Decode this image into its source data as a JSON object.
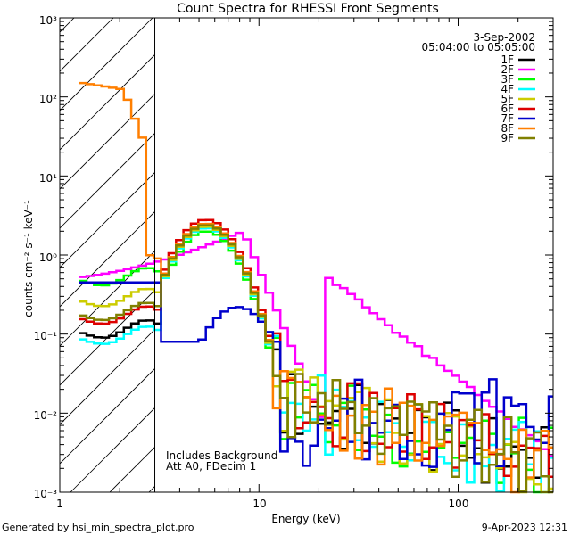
{
  "chart_data": {
    "type": "line",
    "title": "Count Spectra for RHESSI Front Segments",
    "xlabel": "Energy (keV)",
    "ylabel": "counts cm⁻² s⁻¹ keV⁻¹",
    "xscale": "log",
    "yscale": "log",
    "xlim": [
      1,
      300
    ],
    "ylim": [
      0.001,
      1000
    ],
    "x_tick_labels": [
      "1",
      "10",
      "100"
    ],
    "y_tick_labels": [
      "10⁻³",
      "10⁻²",
      "10⁻¹",
      "10⁰",
      "10¹",
      "10²",
      "10³"
    ],
    "date": "3-Sep-2002",
    "time_range": "05:04:00 to 05:05:00",
    "annotations": [
      "Includes Background",
      "Att A0, FDecim 1"
    ],
    "shaded_region_xmax": 3.0,
    "footer_left": "Generated by hsi_min_spectra_plot.pro",
    "footer_right": "9-Apr-2023 12:31",
    "series": [
      {
        "name": "1F",
        "color": "#000000"
      },
      {
        "name": "2F",
        "color": "#ff00ff"
      },
      {
        "name": "3F",
        "color": "#00ff00"
      },
      {
        "name": "4F",
        "color": "#00ffff"
      },
      {
        "name": "5F",
        "color": "#cccc00"
      },
      {
        "name": "6F",
        "color": "#dd0000"
      },
      {
        "name": "7F",
        "color": "#0000cc"
      },
      {
        "name": "8F",
        "color": "#ff7f00"
      },
      {
        "name": "9F",
        "color": "#808000"
      }
    ]
  }
}
